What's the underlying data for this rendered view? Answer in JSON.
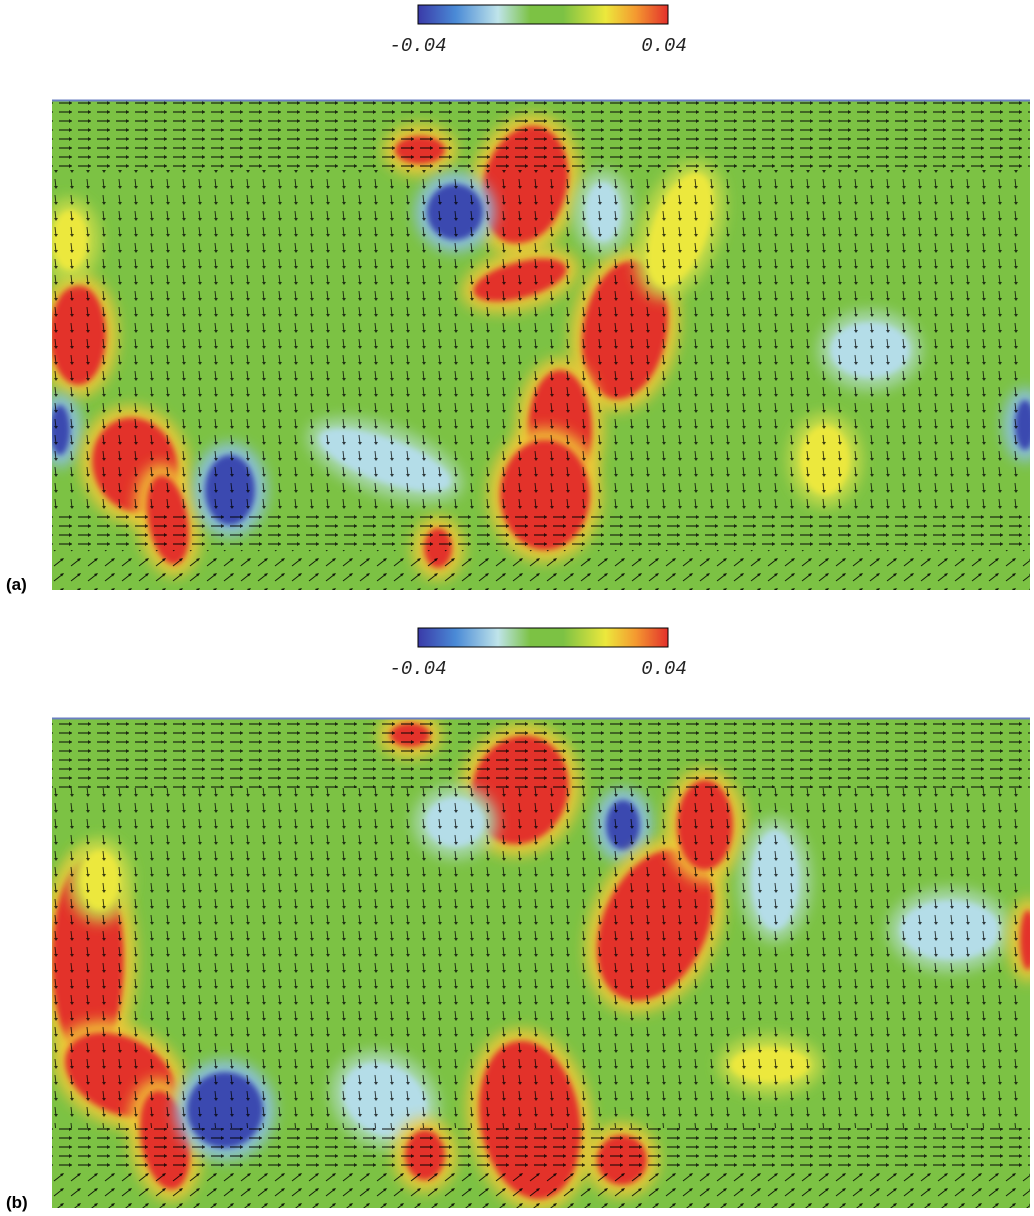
{
  "panels": [
    {
      "label": "(a)",
      "colorbar": {
        "min": -0.04,
        "max": 0.04
      }
    },
    {
      "label": "(b)",
      "colorbar": {
        "min": -0.04,
        "max": 0.04
      }
    }
  ]
}
